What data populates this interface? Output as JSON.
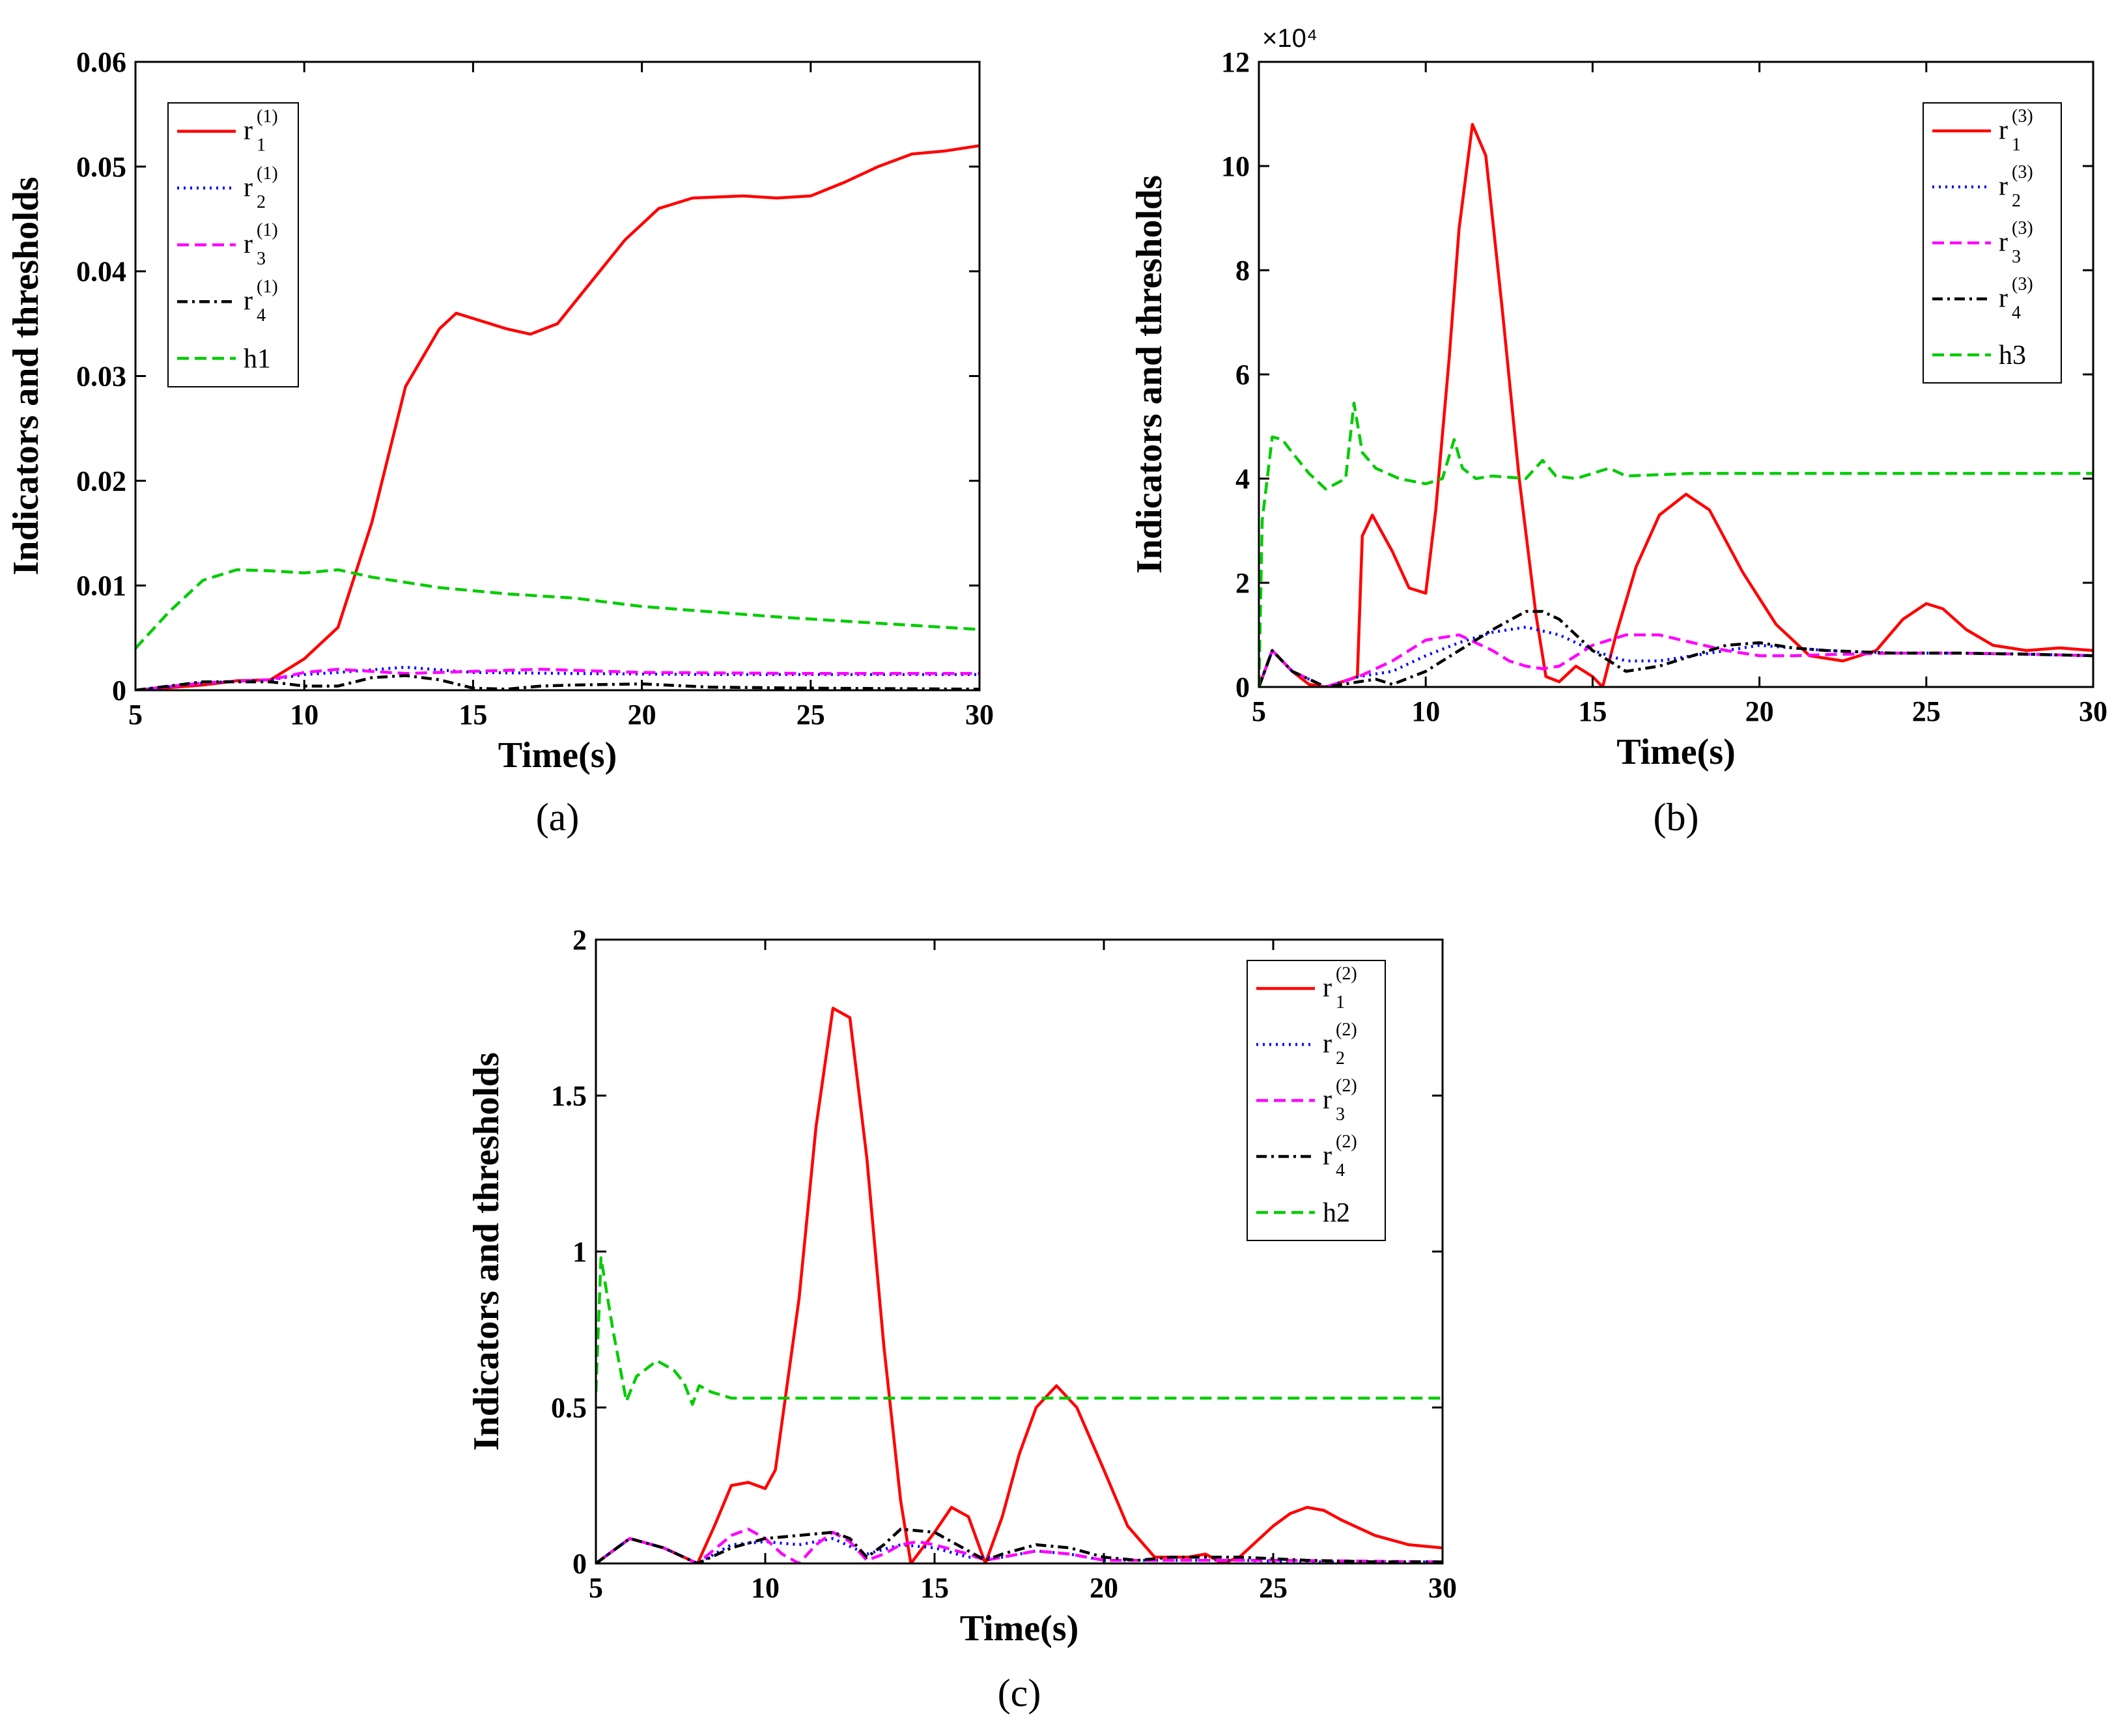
{
  "chart_data": [
    {
      "type": "line",
      "panel": "(a)",
      "xlabel": "Time(s)",
      "ylabel": "Indicators and thresholds",
      "xlim": [
        5,
        30
      ],
      "ylim": [
        0,
        0.06
      ],
      "xticks": [
        5,
        10,
        15,
        20,
        25,
        30
      ],
      "yticks": [
        0,
        0.01,
        0.02,
        0.03,
        0.04,
        0.05,
        0.06
      ],
      "xtick_labels": [
        "5",
        "10",
        "15",
        "20",
        "25",
        "30"
      ],
      "ytick_labels": [
        "0",
        "0.01",
        "0.02",
        "0.03",
        "0.04",
        "0.05",
        "0.06"
      ],
      "exponent_label": "",
      "legend_position": "top-left",
      "series": [
        {
          "name": "r1(1)",
          "base": "r",
          "sub": "1",
          "sup": "(1)",
          "color": "#ff0000",
          "dash": "solid",
          "x": [
            5,
            7,
            8,
            9,
            10,
            11,
            12,
            13,
            14,
            14.5,
            15,
            16,
            16.7,
            17.5,
            18.5,
            19.5,
            20.5,
            21.5,
            23,
            24,
            25,
            26,
            27,
            28,
            29,
            30
          ],
          "y": [
            0,
            0.0005,
            0.0009,
            0.001,
            0.003,
            0.006,
            0.016,
            0.029,
            0.0345,
            0.036,
            0.0355,
            0.0345,
            0.034,
            0.035,
            0.039,
            0.043,
            0.046,
            0.047,
            0.0472,
            0.047,
            0.0472,
            0.0485,
            0.05,
            0.0512,
            0.0515,
            0.052
          ]
        },
        {
          "name": "r2(1)",
          "base": "r",
          "sub": "2",
          "sup": "(1)",
          "color": "#0000ff",
          "dash": "dotted",
          "x": [
            5,
            7,
            9,
            10,
            11,
            13,
            15,
            18,
            22,
            26,
            30
          ],
          "y": [
            0,
            0.0007,
            0.001,
            0.0015,
            0.0017,
            0.0022,
            0.0017,
            0.0016,
            0.0015,
            0.0015,
            0.0015
          ]
        },
        {
          "name": "r3(1)",
          "base": "r",
          "sub": "3",
          "sup": "(1)",
          "color": "#ff00ff",
          "dash": "dashed",
          "x": [
            5,
            7,
            9,
            10,
            11,
            13,
            15,
            17,
            20,
            25,
            30
          ],
          "y": [
            0,
            0.0007,
            0.001,
            0.0017,
            0.002,
            0.0016,
            0.0018,
            0.002,
            0.0017,
            0.0016,
            0.0016
          ]
        },
        {
          "name": "r4(1)",
          "base": "r",
          "sub": "4",
          "sup": "(1)",
          "color": "#000000",
          "dash": "dashdot",
          "x": [
            5,
            7,
            9,
            10,
            11,
            12,
            13,
            14,
            15,
            16,
            17,
            18,
            20,
            22,
            25,
            30
          ],
          "y": [
            0,
            0.0008,
            0.0008,
            0.0004,
            0.0004,
            0.0012,
            0.0014,
            0.001,
            0.0002,
            0.0001,
            0.0004,
            0.0005,
            0.0006,
            0.0003,
            0.0002,
            0.0001
          ]
        },
        {
          "name": "h1",
          "base": "h1",
          "sub": "",
          "sup": "",
          "color": "#00cc00",
          "dash": "dashed",
          "x": [
            5,
            6,
            7,
            8,
            9,
            10,
            11,
            12,
            14,
            16,
            18,
            20,
            22,
            24,
            26,
            28,
            30
          ],
          "y": [
            0.004,
            0.0075,
            0.0105,
            0.0115,
            0.0114,
            0.0112,
            0.0115,
            0.0108,
            0.0098,
            0.0092,
            0.0088,
            0.008,
            0.0075,
            0.007,
            0.0066,
            0.0062,
            0.0058
          ]
        }
      ]
    },
    {
      "type": "line",
      "panel": "(b)",
      "xlabel": "Time(s)",
      "ylabel": "Indicators and thresholds",
      "xlim": [
        5,
        30
      ],
      "ylim": [
        0,
        12
      ],
      "xticks": [
        5,
        10,
        15,
        20,
        25,
        30
      ],
      "yticks": [
        0,
        2,
        4,
        6,
        8,
        10,
        12
      ],
      "xtick_labels": [
        "5",
        "10",
        "15",
        "20",
        "25",
        "30"
      ],
      "ytick_labels": [
        "0",
        "2",
        "4",
        "6",
        "8",
        "10",
        "12"
      ],
      "exponent_label": "×10⁴",
      "legend_position": "top-right",
      "series": [
        {
          "name": "r1(3)",
          "base": "r",
          "sub": "1",
          "sup": "(3)",
          "color": "#ff0000",
          "dash": "solid",
          "x": [
            5,
            5.4,
            6,
            6.5,
            7,
            7.5,
            7.95,
            8.1,
            8.4,
            9,
            9.5,
            10,
            10.3,
            10.7,
            11,
            11.4,
            11.8,
            12.3,
            12.8,
            13.3,
            13.6,
            14,
            14.5,
            15,
            15.3,
            15.7,
            16.3,
            17,
            17.8,
            18.5,
            19.5,
            20.5,
            21.5,
            22.5,
            23.5,
            24.3,
            25,
            25.5,
            26.2,
            27,
            28,
            29,
            30
          ],
          "y": [
            0,
            0.7,
            0.3,
            0.05,
            0,
            0.1,
            0.2,
            2.9,
            3.3,
            2.6,
            1.9,
            1.8,
            3.4,
            6.3,
            8.8,
            10.8,
            10.2,
            7.2,
            4.0,
            1.4,
            0.2,
            0.1,
            0.4,
            0.2,
            0,
            1.0,
            2.3,
            3.3,
            3.7,
            3.4,
            2.2,
            1.2,
            0.6,
            0.5,
            0.7,
            1.3,
            1.6,
            1.5,
            1.1,
            0.8,
            0.7,
            0.75,
            0.7
          ]
        },
        {
          "name": "r2(3)",
          "base": "r",
          "sub": "2",
          "sup": "(3)",
          "color": "#0000ff",
          "dash": "dotted",
          "x": [
            5,
            5.4,
            6,
            7,
            8,
            9,
            10,
            11,
            12,
            13,
            14,
            15,
            16,
            17,
            18,
            19,
            20,
            21,
            22,
            24,
            26,
            28,
            30
          ],
          "y": [
            0,
            0.7,
            0.3,
            0,
            0.2,
            0.3,
            0.6,
            0.85,
            1.05,
            1.15,
            1.0,
            0.7,
            0.5,
            0.5,
            0.6,
            0.7,
            0.8,
            0.75,
            0.7,
            0.65,
            0.65,
            0.63,
            0.6
          ]
        },
        {
          "name": "r3(3)",
          "base": "r",
          "sub": "3",
          "sup": "(3)",
          "color": "#ff00ff",
          "dash": "dashed",
          "x": [
            5,
            5.4,
            6,
            7,
            8,
            9,
            10,
            11,
            12,
            12.5,
            13,
            13.5,
            14,
            15,
            16,
            17,
            18,
            19,
            20,
            21,
            22,
            24,
            26,
            28,
            30
          ],
          "y": [
            0,
            0.7,
            0.3,
            0,
            0.2,
            0.5,
            0.9,
            1.0,
            0.7,
            0.5,
            0.4,
            0.35,
            0.4,
            0.8,
            1.0,
            1.0,
            0.85,
            0.7,
            0.6,
            0.6,
            0.62,
            0.65,
            0.65,
            0.63,
            0.6
          ]
        },
        {
          "name": "r4(3)",
          "base": "r",
          "sub": "4",
          "sup": "(3)",
          "color": "#000000",
          "dash": "dashdot",
          "x": [
            5,
            5.4,
            6,
            7,
            8,
            8.5,
            9,
            10,
            11,
            12,
            13,
            13.5,
            14,
            15,
            16,
            17,
            18,
            19,
            20,
            21,
            22,
            24,
            26,
            28,
            30
          ],
          "y": [
            0,
            0.7,
            0.3,
            0,
            0.1,
            0.15,
            0.05,
            0.3,
            0.7,
            1.1,
            1.45,
            1.45,
            1.3,
            0.7,
            0.3,
            0.4,
            0.6,
            0.8,
            0.85,
            0.75,
            0.7,
            0.65,
            0.65,
            0.63,
            0.6
          ]
        },
        {
          "name": "h3",
          "base": "h3",
          "sub": "",
          "sup": "",
          "color": "#00cc00",
          "dash": "dashed",
          "x": [
            5,
            5.1,
            5.4,
            5.7,
            6,
            6.5,
            7,
            7.6,
            7.85,
            8.1,
            8.5,
            9.2,
            10,
            10.5,
            10.85,
            11.1,
            11.5,
            12,
            13,
            13.5,
            13.9,
            14.5,
            15.5,
            16,
            18,
            20,
            22,
            25,
            28,
            30
          ],
          "y": [
            0,
            3.2,
            4.8,
            4.75,
            4.5,
            4.1,
            3.8,
            4.0,
            5.45,
            4.5,
            4.2,
            4.0,
            3.9,
            4.0,
            4.75,
            4.2,
            4.0,
            4.05,
            4.0,
            4.35,
            4.05,
            4.0,
            4.2,
            4.05,
            4.1,
            4.1,
            4.1,
            4.1,
            4.1,
            4.1
          ]
        }
      ]
    },
    {
      "type": "line",
      "panel": "(c)",
      "xlabel": "Time(s)",
      "ylabel": "Indicators and thresholds",
      "xlim": [
        5,
        30
      ],
      "ylim": [
        0,
        2
      ],
      "xticks": [
        5,
        10,
        15,
        20,
        25,
        30
      ],
      "yticks": [
        0,
        0.5,
        1,
        1.5,
        2
      ],
      "xtick_labels": [
        "5",
        "10",
        "15",
        "20",
        "25",
        "30"
      ],
      "ytick_labels": [
        "0",
        "0.5",
        "1",
        "1.5",
        "2"
      ],
      "exponent_label": "",
      "legend_position": "top-right",
      "series": [
        {
          "name": "r1(2)",
          "base": "r",
          "sub": "1",
          "sup": "(2)",
          "color": "#ff0000",
          "dash": "solid",
          "x": [
            5,
            5.5,
            6,
            7,
            8,
            8.5,
            9,
            9.5,
            10,
            10.3,
            11,
            11.5,
            12,
            12.5,
            13,
            13.5,
            14,
            14.3,
            15,
            15.5,
            16,
            16.5,
            17,
            17.5,
            18,
            18.6,
            19.2,
            20,
            20.7,
            21.5,
            22.5,
            23,
            23.5,
            24,
            25,
            25.5,
            26,
            26.5,
            27,
            28,
            29,
            30
          ],
          "y": [
            0,
            0.04,
            0.08,
            0.05,
            0,
            0.12,
            0.25,
            0.26,
            0.24,
            0.3,
            0.85,
            1.4,
            1.78,
            1.75,
            1.3,
            0.7,
            0.2,
            0,
            0.1,
            0.18,
            0.15,
            0,
            0.15,
            0.35,
            0.5,
            0.57,
            0.5,
            0.3,
            0.12,
            0.02,
            0.02,
            0.03,
            0,
            0.02,
            0.12,
            0.16,
            0.18,
            0.17,
            0.14,
            0.09,
            0.06,
            0.05
          ]
        },
        {
          "name": "r2(2)",
          "base": "r",
          "sub": "2",
          "sup": "(2)",
          "color": "#0000ff",
          "dash": "dotted",
          "x": [
            5,
            6,
            7,
            8,
            9,
            10,
            11,
            12,
            13,
            14,
            15,
            16,
            17,
            18,
            19,
            20,
            21,
            22,
            24,
            26,
            28,
            30
          ],
          "y": [
            0,
            0.08,
            0.05,
            0,
            0.06,
            0.07,
            0.06,
            0.08,
            0.03,
            0.06,
            0.05,
            0.02,
            0.02,
            0.04,
            0.03,
            0.01,
            0.01,
            0.01,
            0.01,
            0.005,
            0.005,
            0.005
          ]
        },
        {
          "name": "r3(2)",
          "base": "r",
          "sub": "3",
          "sup": "(2)",
          "color": "#ff00ff",
          "dash": "dashed",
          "x": [
            5,
            6,
            7,
            8,
            9,
            9.5,
            10,
            10.5,
            11,
            11.5,
            12,
            12.5,
            13,
            13.5,
            14,
            14.5,
            15,
            16,
            16.5,
            17,
            18,
            19,
            20,
            22,
            25,
            30
          ],
          "y": [
            0,
            0.08,
            0.05,
            0,
            0.09,
            0.11,
            0.08,
            0.03,
            0,
            0.06,
            0.1,
            0.07,
            0.01,
            0.03,
            0.06,
            0.07,
            0.06,
            0.03,
            0.01,
            0.02,
            0.04,
            0.03,
            0.01,
            0.01,
            0.01,
            0.005
          ]
        },
        {
          "name": "r4(2)",
          "base": "r",
          "sub": "4",
          "sup": "(2)",
          "color": "#000000",
          "dash": "dashdot",
          "x": [
            5,
            6,
            7,
            8,
            9,
            10,
            11,
            12,
            12.5,
            13,
            13.5,
            14,
            15,
            16,
            16.5,
            17,
            18,
            19,
            20,
            21,
            22,
            24,
            26,
            28,
            30
          ],
          "y": [
            0,
            0.08,
            0.05,
            0,
            0.05,
            0.08,
            0.09,
            0.1,
            0.08,
            0.02,
            0.06,
            0.11,
            0.1,
            0.04,
            0.01,
            0.03,
            0.06,
            0.05,
            0.02,
            0.01,
            0.02,
            0.02,
            0.01,
            0.005,
            0.005
          ]
        },
        {
          "name": "h2",
          "base": "h2",
          "sub": "",
          "sup": "",
          "color": "#00cc00",
          "dash": "dashed",
          "x": [
            5,
            5.15,
            5.5,
            5.9,
            6.2,
            6.8,
            7.3,
            7.6,
            7.85,
            8.05,
            8.4,
            9,
            10,
            12,
            15,
            20,
            25,
            30
          ],
          "y": [
            0.55,
            0.98,
            0.75,
            0.52,
            0.6,
            0.65,
            0.62,
            0.58,
            0.51,
            0.57,
            0.55,
            0.53,
            0.53,
            0.53,
            0.53,
            0.53,
            0.53,
            0.53
          ]
        }
      ]
    }
  ]
}
